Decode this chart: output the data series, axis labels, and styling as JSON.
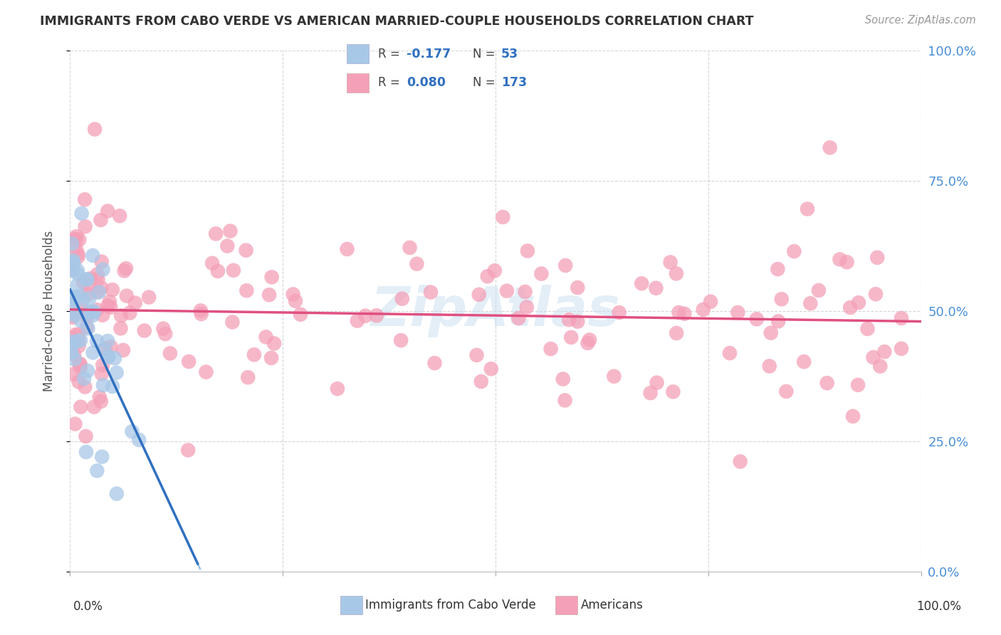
{
  "title": "IMMIGRANTS FROM CABO VERDE VS AMERICAN MARRIED-COUPLE HOUSEHOLDS CORRELATION CHART",
  "source": "Source: ZipAtlas.com",
  "ylabel": "Married-couple Households",
  "legend_label1": "Immigrants from Cabo Verde",
  "legend_label2": "Americans",
  "R1": -0.177,
  "N1": 53,
  "R2": 0.08,
  "N2": 173,
  "cabo_verde_color": "#a8c8e8",
  "americans_color": "#f4a0b8",
  "cabo_verde_line_color": "#3070c0",
  "americans_line_color": "#e05080",
  "cabo_verde_dashed_color": "#90b8e0",
  "watermark": "ZipAtlas",
  "watermark_color": "#c8dff0",
  "title_color": "#333333",
  "source_color": "#999999",
  "ylabel_color": "#555555",
  "tick_color": "#4a90d9",
  "label_color": "#333333",
  "grid_color": "#cccccc",
  "ytick_labels": [
    "0.0%",
    "25.0%",
    "50.0%",
    "75.0%",
    "100.0%"
  ],
  "ytick_vals": [
    0,
    25,
    50,
    75,
    100
  ],
  "seed": 17
}
